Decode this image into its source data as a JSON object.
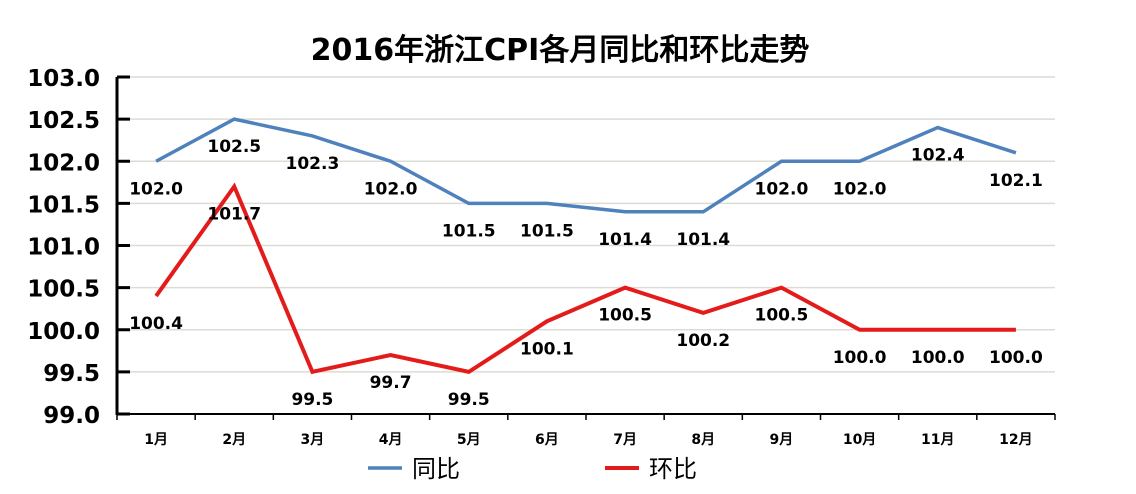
{
  "chart_data": {
    "type": "line",
    "title": "2016年浙江CPI各月同比和环比走势",
    "categories": [
      "1月",
      "2月",
      "3月",
      "4月",
      "5月",
      "6月",
      "7月",
      "8月",
      "9月",
      "10月",
      "11月",
      "12月"
    ],
    "series": [
      {
        "name": "同比",
        "color": "#4f81bd",
        "values": [
          102.0,
          102.5,
          102.3,
          102.0,
          101.5,
          101.5,
          101.4,
          101.4,
          102.0,
          102.0,
          102.4,
          102.1
        ]
      },
      {
        "name": "环比",
        "color": "#e31b1b",
        "values": [
          100.4,
          101.7,
          99.5,
          99.7,
          99.5,
          100.1,
          100.5,
          100.2,
          100.5,
          100.0,
          100.0,
          100.0
        ]
      }
    ],
    "ylim": [
      99.0,
      103.0
    ],
    "yticks": [
      "99.0",
      "99.5",
      "100.0",
      "100.5",
      "101.0",
      "101.5",
      "102.0",
      "102.5",
      "103.0"
    ],
    "grid": true,
    "legend": "bottom",
    "data_labels": true
  }
}
